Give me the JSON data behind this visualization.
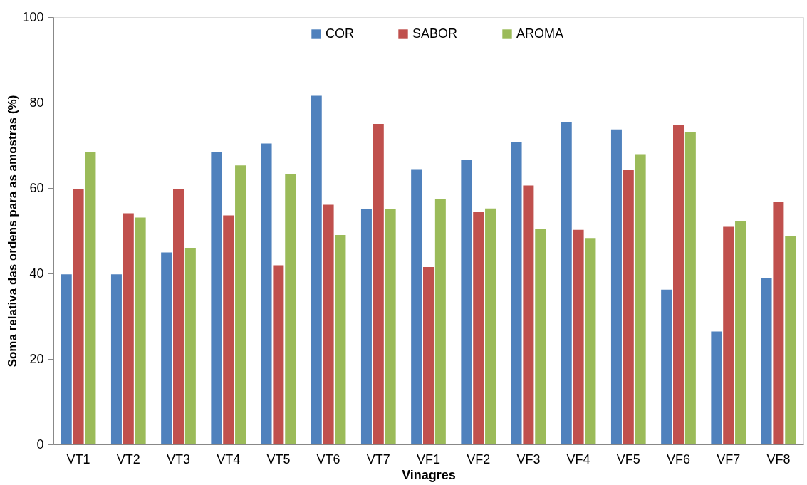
{
  "chart_data": {
    "type": "bar",
    "xlabel": "Vinagres",
    "ylabel": "Soma relativa das ordens para as amostras (%)",
    "categories": [
      "VT1",
      "VT2",
      "VT3",
      "VT4",
      "VT5",
      "VT6",
      "VT7",
      "VF1",
      "VF2",
      "VF3",
      "VF4",
      "VF5",
      "VF6",
      "VF7",
      "VF8"
    ],
    "series": [
      {
        "name": "COR",
        "color": "#4f81bd",
        "values": [
          39.8,
          39.8,
          44.9,
          68.4,
          70.4,
          81.6,
          55.1,
          64.4,
          66.6,
          70.7,
          75.4,
          73.7,
          36.2,
          26.4,
          38.9
        ]
      },
      {
        "name": "SABOR",
        "color": "#c0504d",
        "values": [
          59.7,
          54.1,
          59.7,
          53.6,
          41.9,
          56.1,
          75.0,
          41.5,
          54.5,
          60.6,
          50.2,
          64.3,
          74.8,
          50.9,
          56.7
        ]
      },
      {
        "name": "AROMA",
        "color": "#9bbb59",
        "values": [
          68.4,
          53.1,
          46.0,
          65.3,
          63.2,
          49.0,
          55.1,
          57.4,
          55.2,
          50.5,
          48.3,
          67.9,
          73.0,
          52.3,
          48.7
        ]
      }
    ],
    "ylim": [
      0,
      100
    ],
    "yticks": [
      0,
      20,
      40,
      60,
      80,
      100
    ],
    "grid": false,
    "legend": "top"
  }
}
